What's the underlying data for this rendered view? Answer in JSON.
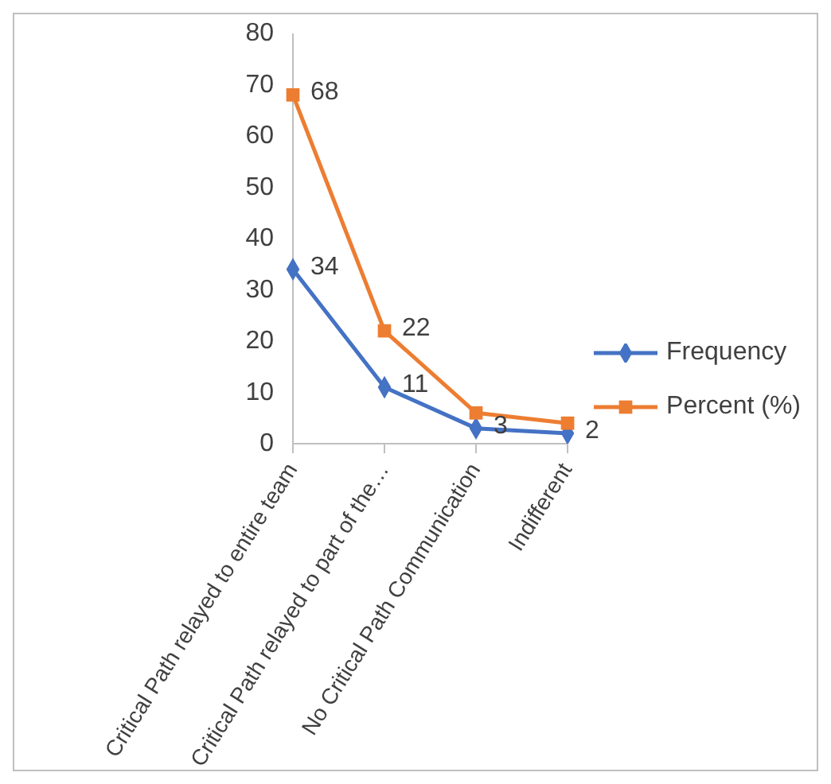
{
  "chart_data": {
    "type": "line",
    "categories": [
      "Critical Path relayed to entire team",
      "Critical Path relayed to part of the…",
      "No Critical Path Communication",
      "Indifferent"
    ],
    "series": [
      {
        "name": "Frequency",
        "color": "#4472c4",
        "values": [
          34,
          11,
          3,
          2
        ],
        "marker": "diamond",
        "value_labels": [
          "34",
          "11",
          "3",
          "2"
        ]
      },
      {
        "name": "Percent (%)",
        "color": "#ed7d31",
        "values": [
          68,
          22,
          6,
          4
        ],
        "marker": "square",
        "value_labels": [
          "68",
          "22",
          null,
          null
        ]
      }
    ],
    "ylim": [
      0,
      80
    ],
    "yticks": [
      0,
      10,
      20,
      30,
      40,
      50,
      60,
      70,
      80
    ],
    "grid": false,
    "legend": "right"
  }
}
